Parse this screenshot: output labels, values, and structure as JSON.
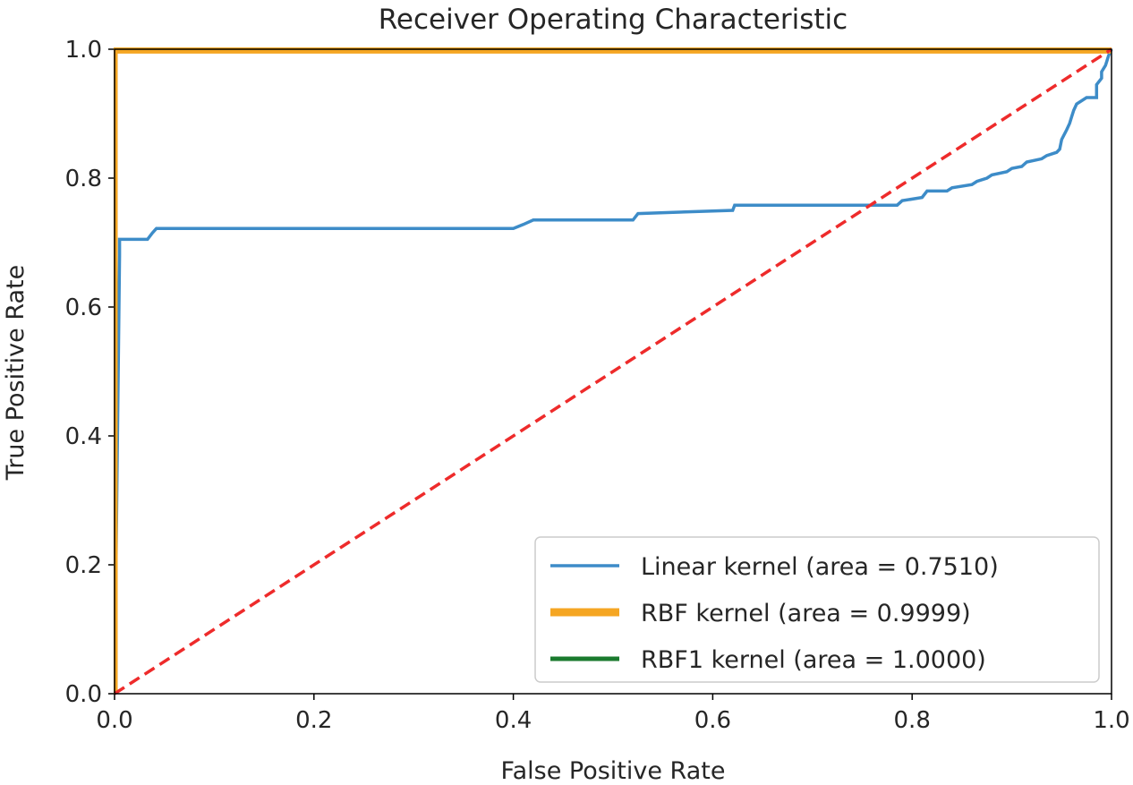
{
  "chart_data": {
    "type": "line",
    "title": "Receiver Operating Characteristic",
    "xlabel": "False Positive Rate",
    "ylabel": "True Positive Rate",
    "xlim": [
      0.0,
      1.0
    ],
    "ylim": [
      0.0,
      1.0
    ],
    "xticks": [
      "0.0",
      "0.2",
      "0.4",
      "0.6",
      "0.8",
      "1.0"
    ],
    "yticks": [
      "0.0",
      "0.2",
      "0.4",
      "0.6",
      "0.8",
      "1.0"
    ],
    "grid": false,
    "legend_position": "lower-right",
    "series": [
      {
        "name": "Linear kernel (area = 0.7510)",
        "color": "#3d8cc8",
        "style": "solid",
        "x": [
          0.0,
          0.005,
          0.005,
          0.033,
          0.038,
          0.042,
          0.19,
          0.4,
          0.41,
          0.42,
          0.52,
          0.525,
          0.62,
          0.622,
          0.74,
          0.785,
          0.79,
          0.81,
          0.815,
          0.835,
          0.84,
          0.86,
          0.865,
          0.875,
          0.88,
          0.895,
          0.9,
          0.91,
          0.915,
          0.93,
          0.935,
          0.945,
          0.948,
          0.95,
          0.955,
          0.958,
          0.96,
          0.962,
          0.965,
          0.975,
          0.98,
          0.985,
          0.985,
          0.99,
          0.99,
          0.994,
          0.997,
          1.0
        ],
        "y": [
          0.0,
          0.68,
          0.705,
          0.705,
          0.715,
          0.722,
          0.722,
          0.722,
          0.728,
          0.735,
          0.735,
          0.745,
          0.75,
          0.758,
          0.758,
          0.758,
          0.765,
          0.77,
          0.78,
          0.78,
          0.785,
          0.79,
          0.795,
          0.8,
          0.805,
          0.81,
          0.815,
          0.818,
          0.825,
          0.83,
          0.835,
          0.84,
          0.845,
          0.86,
          0.875,
          0.885,
          0.895,
          0.905,
          0.915,
          0.925,
          0.925,
          0.925,
          0.945,
          0.955,
          0.965,
          0.975,
          0.99,
          1.0
        ]
      },
      {
        "name": "RBF kernel (area = 0.9999)",
        "color": "#f5a623",
        "style": "solid",
        "x": [
          0.0,
          0.0,
          1.0
        ],
        "y": [
          0.0,
          0.998,
          0.998
        ]
      },
      {
        "name": "RBF1 kernel (area = 1.0000)",
        "color": "#1a7a2e",
        "style": "solid",
        "x": [
          0.0,
          0.0,
          1.0
        ],
        "y": [
          0.0,
          1.0,
          1.0
        ]
      }
    ],
    "reference_line": {
      "color": "#ee2b2b",
      "style": "dashed",
      "x": [
        0.0,
        1.0
      ],
      "y": [
        0.0,
        1.0
      ]
    }
  }
}
